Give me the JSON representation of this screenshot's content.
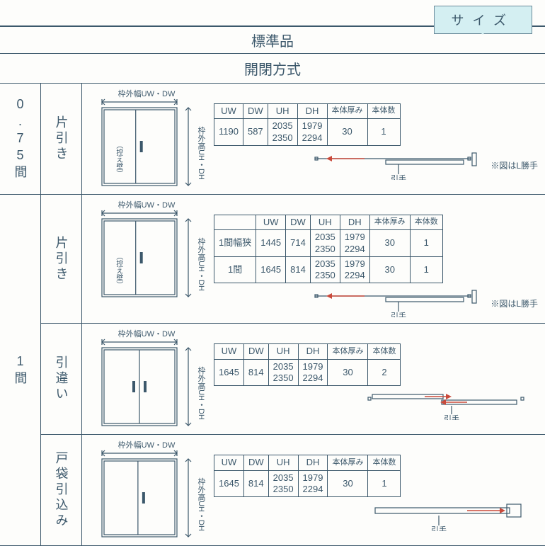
{
  "tab": "サイズ",
  "header": "標準品",
  "subheader": "開閉方式",
  "labels": {
    "width": "枠外幅UW・DW",
    "height": "枠外高UH・DH",
    "hikae": "（控え壁）",
    "hikite": "引手",
    "note_l": "※図はL勝手"
  },
  "cols": {
    "uw": "UW",
    "dw": "DW",
    "uh": "UH",
    "dh": "DH",
    "thick": "本体厚み",
    "count": "本体数"
  },
  "rows": [
    {
      "span_label": "0.75間",
      "type_label": "片引き",
      "diagram": "katabiki",
      "has_labelcol": false,
      "hikite_style": "single",
      "show_note": true,
      "data": [
        {
          "uw": "1190",
          "dw": "587",
          "uh": "2035\n2350",
          "dh": "1979\n2294",
          "t": "30",
          "n": "1"
        }
      ]
    },
    {
      "span_label": "",
      "type_label": "片引き",
      "diagram": "katabiki",
      "has_labelcol": true,
      "hikite_style": "single",
      "show_note": true,
      "data": [
        {
          "label": "1間幅狭",
          "uw": "1445",
          "dw": "714",
          "uh": "2035\n2350",
          "dh": "1979\n2294",
          "t": "30",
          "n": "1"
        },
        {
          "label": "1間",
          "uw": "1645",
          "dw": "814",
          "uh": "2035\n2350",
          "dh": "1979\n2294",
          "t": "30",
          "n": "1"
        }
      ]
    },
    {
      "span_label": "1間",
      "type_label": "引違い",
      "diagram": "hikichigai",
      "has_labelcol": false,
      "hikite_style": "double",
      "show_note": false,
      "data": [
        {
          "uw": "1645",
          "dw": "814",
          "uh": "2035\n2350",
          "dh": "1979\n2294",
          "t": "30",
          "n": "2"
        }
      ]
    },
    {
      "span_label": "",
      "type_label": "戸袋引込み",
      "diagram": "tobukuro",
      "has_labelcol": false,
      "hikite_style": "tobukuro",
      "show_note": false,
      "data": [
        {
          "uw": "1645",
          "dw": "814",
          "uh": "2035\n2350",
          "dh": "1979\n2294",
          "t": "30",
          "n": "1"
        }
      ]
    }
  ],
  "style": {
    "stroke": "#3c586b",
    "red": "#c94a3b",
    "diagram_w": 170,
    "diagram_h": 140,
    "hikite_w": 260,
    "hikite_h": 40
  }
}
